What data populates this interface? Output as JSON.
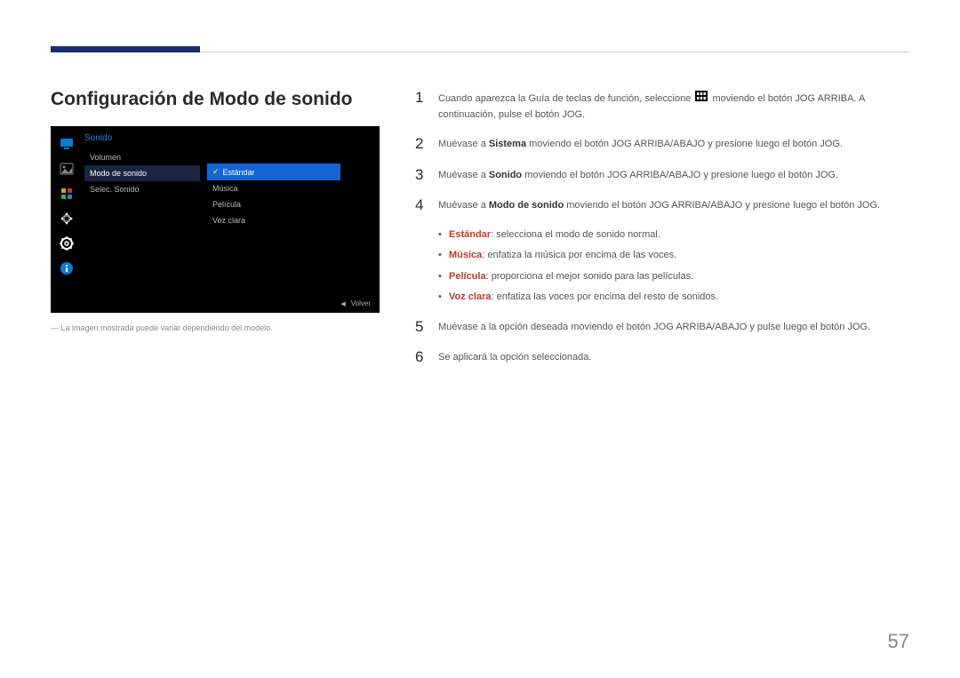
{
  "page_number": "57",
  "section_title": "Configuración de Modo de sonido",
  "disclaimer": "―  La imagen mostrada puede variar dependiendo del modelo.",
  "osd": {
    "header": "Sonido",
    "col1": [
      "Volumen",
      "Modo de sonido",
      "Selec. Sonido"
    ],
    "col1_selected_index": 1,
    "col2": [
      "Estándar",
      "Música",
      "Película",
      "Voz clara"
    ],
    "col2_selected_index": 0,
    "footer_label": "Volver",
    "sidebar_icon_colors": [
      "#0a7bd4",
      "#3a3a3a",
      "#d4a017",
      "#ffffff",
      "#ffffff",
      "#0a7bd4"
    ]
  },
  "steps": [
    {
      "num": "1",
      "parts": [
        {
          "t": "Cuando aparezca la Guía de teclas de función, seleccione "
        },
        {
          "icon": "menu"
        },
        {
          "t": " moviendo el botón JOG ARRIBA. A continuación, pulse el botón JOG."
        }
      ]
    },
    {
      "num": "2",
      "parts": [
        {
          "t": "Muévase a "
        },
        {
          "t": "Sistema",
          "bold": true
        },
        {
          "t": " moviendo el botón JOG ARRIBA/ABAJO y presione luego el botón JOG."
        }
      ]
    },
    {
      "num": "3",
      "parts": [
        {
          "t": "Muévase a "
        },
        {
          "t": "Sonido",
          "bold": true
        },
        {
          "t": " moviendo el botón JOG ARRIBA/ABAJO y presione luego el botón JOG."
        }
      ]
    },
    {
      "num": "4",
      "parts": [
        {
          "t": "Muévase a "
        },
        {
          "t": "Modo de sonido",
          "bold": true
        },
        {
          "t": " moviendo el botón JOG ARRIBA/ABAJO y presione luego el botón JOG."
        }
      ]
    },
    {
      "num": "5",
      "parts": [
        {
          "t": "Muévase a la opción deseada moviendo el botón JOG ARRIBA/ABAJO y pulse luego el botón JOG."
        }
      ]
    },
    {
      "num": "6",
      "parts": [
        {
          "t": "Se aplicará la opción seleccionada."
        }
      ]
    }
  ],
  "bullets": [
    {
      "label": "Estándar",
      "text": ": selecciona el modo de sonido normal."
    },
    {
      "label": "Música",
      "text": ": enfatiza la música por encima de las voces."
    },
    {
      "label": "Película",
      "text": ": proporciona el mejor sonido para las películas."
    },
    {
      "label": "Voz clara",
      "text": ": enfatiza las voces por encima del resto de sonidos."
    }
  ],
  "bullets_after_step_index": 3,
  "colors": {
    "accent_bar": "#1a2d6b",
    "bold_red": "#c0392b",
    "osd_bg": "#000000",
    "osd_header": "#1e88e5",
    "osd_selected_dark": "#1a2340",
    "osd_selected_blue": "#1565d8",
    "osd_check": "#7fff00"
  }
}
